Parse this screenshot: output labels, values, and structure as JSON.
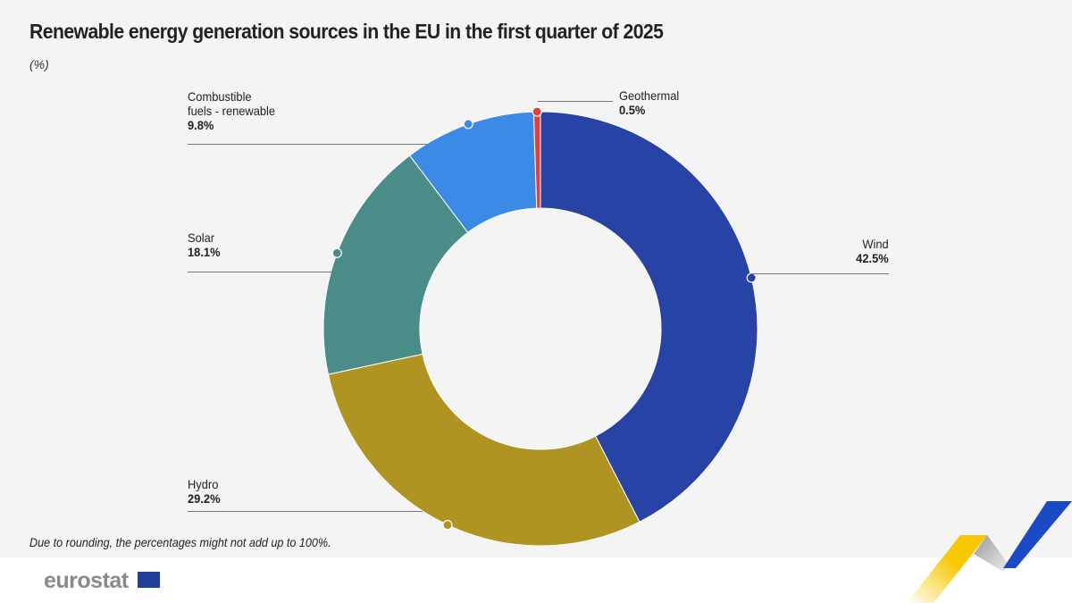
{
  "chart_data": {
    "type": "pie",
    "title": "Renewable energy generation sources in the EU in the first quarter of  2025",
    "subtitle": "(%)",
    "note": "Due to rounding, the percentages might not add up to 100%.",
    "donut": true,
    "start": "12 o'clock, clockwise",
    "slices": [
      {
        "label": "Wind",
        "value": 42.5,
        "value_label": "42.5%",
        "color": "#2743a6"
      },
      {
        "label": "Hydro",
        "value": 29.2,
        "value_label": "29.2%",
        "color": "#b09421"
      },
      {
        "label": "Solar",
        "value": 18.1,
        "value_label": "18.1%",
        "color": "#4a8c88"
      },
      {
        "label": "Combustible fuels - renewable",
        "value": 9.8,
        "value_label": "9.8%",
        "color": "#3a8ae6"
      },
      {
        "label": "Geothermal",
        "value": 0.5,
        "value_label": "0.5%",
        "color": "#e0413f"
      }
    ]
  },
  "brand": {
    "logo": "eurostat",
    "colors": {
      "yellow": "#f7c800",
      "blue": "#1a4bc4"
    }
  },
  "labels": {
    "combustible_line1": "Combustible",
    "combustible_line2": "fuels - renewable"
  }
}
